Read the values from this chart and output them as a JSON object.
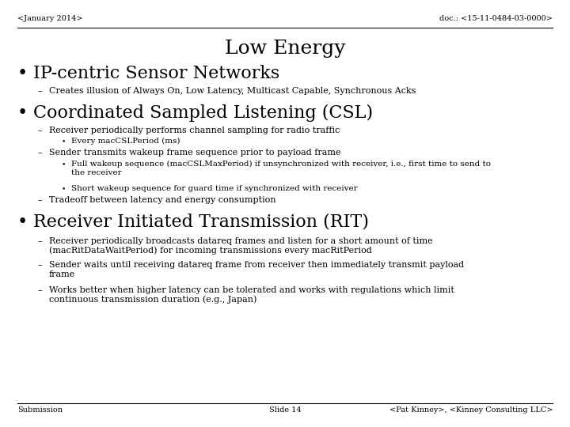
{
  "title": "Low Energy",
  "header_left": "<January 2014>",
  "header_right": "doc.: <15-11-0484-03-0000>",
  "footer_left": "Submission",
  "footer_center": "Slide 14",
  "footer_right": "<Pat Kinney>, <Kinney Consulting LLC>",
  "bg_color": "#ffffff",
  "text_color": "#000000",
  "bullet1": "IP-centric Sensor Networks",
  "bullet1_sub1": "Creates illusion of Always On, Low Latency, Multicast Capable, Synchronous Acks",
  "bullet2": "Coordinated Sampled Listening (CSL)",
  "bullet2_sub1": "Receiver periodically performs channel sampling for radio traffic",
  "bullet2_sub1a": "Every macCSLPeriod (ms)",
  "bullet2_sub2": "Sender transmits wakeup frame sequence prior to payload frame",
  "bullet2_sub2a": "Full wakeup sequence (macCSLMaxPeriod) if unsynchronized with receiver, i.e., first time to send to\nthe receiver",
  "bullet2_sub2b": "Short wakeup sequence for guard time if synchronized with receiver",
  "bullet2_sub3": "Tradeoff between latency and energy consumption",
  "bullet3": "Receiver Initiated Transmission (RIT)",
  "bullet3_sub1": "Receiver periodically broadcasts datareq frames and listen for a short amount of time\n(macRitDataWaitPeriod) for incoming transmissions every macRitPeriod",
  "bullet3_sub2": "Sender waits until receiving datareq frame from receiver then immediately transmit payload\nframe",
  "bullet3_sub3": "Works better when higher latency can be tolerated and works with regulations which limit\ncontinuous transmission duration (e.g., Japan)",
  "title_fontsize": 18,
  "header_fontsize": 7,
  "bullet_fontsize": 16,
  "sub1_fontsize": 8,
  "sub2_fontsize": 7.5
}
